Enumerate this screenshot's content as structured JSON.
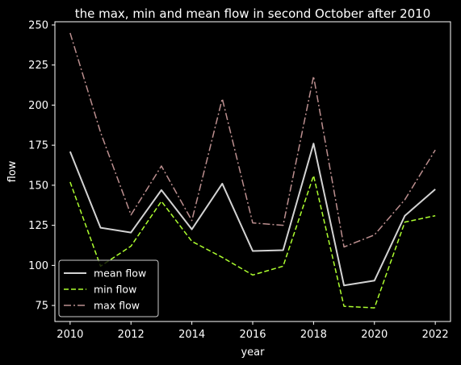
{
  "chart_data": {
    "type": "line",
    "title": "the max, min and mean flow in second October after 2010",
    "xlabel": "year",
    "ylabel": "flow",
    "x": [
      2010,
      2011,
      2012,
      2013,
      2014,
      2015,
      2016,
      2017,
      2018,
      2019,
      2020,
      2021,
      2022
    ],
    "xlim": [
      2009.5,
      2022.5
    ],
    "ylim": [
      65,
      252
    ],
    "xticks": [
      "2010",
      "2012",
      "2014",
      "2016",
      "2018",
      "2020",
      "2022"
    ],
    "yticks": [
      "75",
      "100",
      "125",
      "150",
      "175",
      "200",
      "225",
      "250"
    ],
    "grid": false,
    "legend_position": "lower-left",
    "background": "#000000",
    "foreground": "#ffffff",
    "series": [
      {
        "name": "mean flow",
        "color": "#d3d3d3",
        "style": "solid",
        "values": [
          171,
          123.5,
          120.5,
          147,
          122.5,
          151,
          109,
          109.5,
          176,
          87.5,
          90.5,
          131,
          147.5
        ]
      },
      {
        "name": "min flow",
        "color": "#adff2f",
        "style": "dashed",
        "values": [
          152,
          99.5,
          112,
          140,
          115,
          105,
          94,
          99.5,
          156,
          74.5,
          73.5,
          127,
          131
        ]
      },
      {
        "name": "max flow",
        "color": "#bc8f8f",
        "style": "dashdot",
        "values": [
          245,
          183,
          131.5,
          162,
          128,
          204,
          126.5,
          125,
          218,
          111.5,
          119,
          141,
          172
        ]
      }
    ]
  }
}
